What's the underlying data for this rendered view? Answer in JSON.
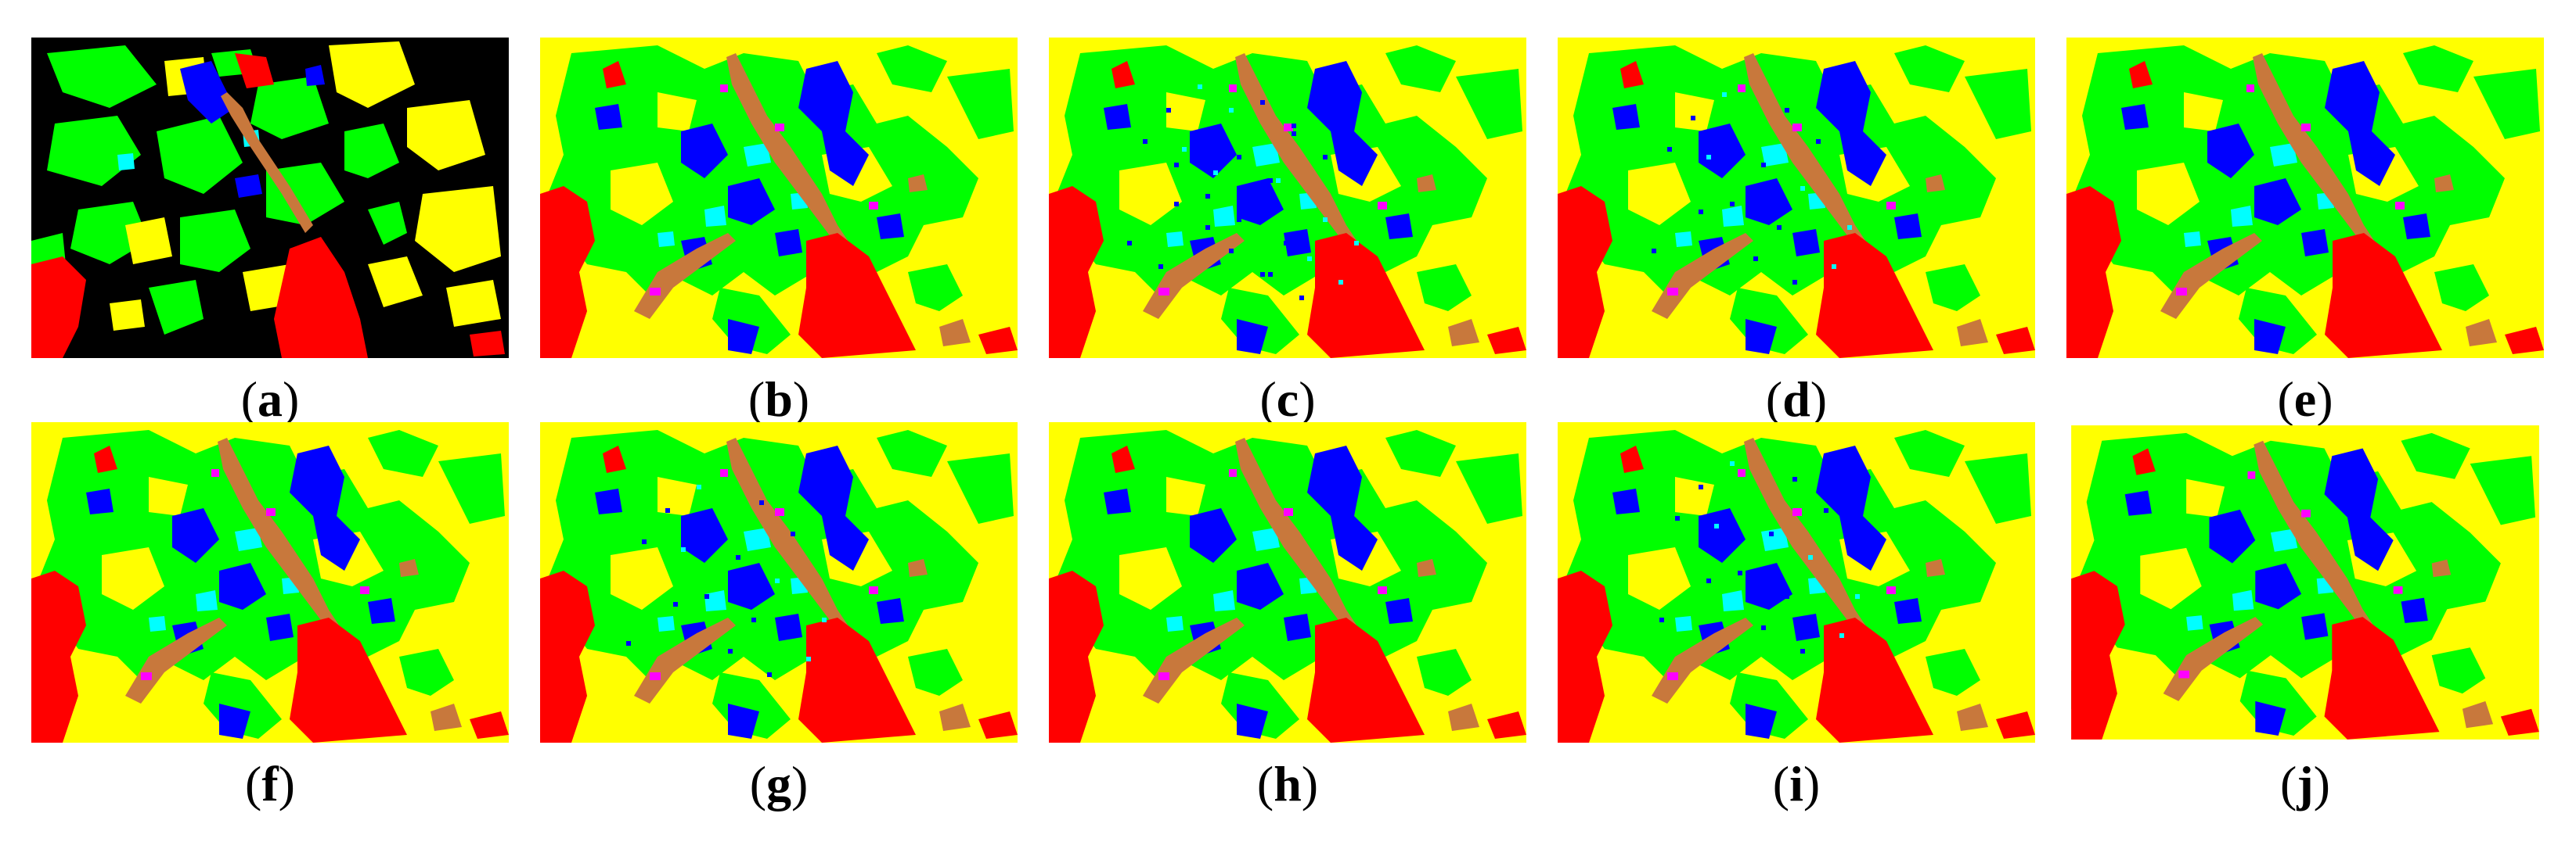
{
  "colors": {
    "yellow": "#ffff00",
    "green": "#00ff00",
    "blue": "#0000ff",
    "cyan": "#00ffff",
    "red": "#ff0000",
    "magenta": "#ff00ff",
    "brown": "#c8783c",
    "black": "#000000"
  },
  "panels": [
    {
      "id": "a",
      "open": "(",
      "letter": "a",
      "close": ")",
      "variant": "ground-truth"
    },
    {
      "id": "b",
      "open": "(",
      "letter": "b",
      "close": ")",
      "variant": "classified"
    },
    {
      "id": "c",
      "open": "(",
      "letter": "c",
      "close": ")",
      "variant": "classified-noisy"
    },
    {
      "id": "d",
      "open": "(",
      "letter": "d",
      "close": ")",
      "variant": "classified"
    },
    {
      "id": "e",
      "open": "(",
      "letter": "e",
      "close": ")",
      "variant": "classified"
    },
    {
      "id": "f",
      "open": "(",
      "letter": "f",
      "close": ")",
      "variant": "classified"
    },
    {
      "id": "g",
      "open": "(",
      "letter": "g",
      "close": ")",
      "variant": "classified"
    },
    {
      "id": "h",
      "open": "(",
      "letter": "h",
      "close": ")",
      "variant": "classified"
    },
    {
      "id": "i",
      "open": "(",
      "letter": "i",
      "close": ")",
      "variant": "classified"
    },
    {
      "id": "j",
      "open": "(",
      "letter": "j",
      "close": ")",
      "variant": "classified"
    }
  ]
}
